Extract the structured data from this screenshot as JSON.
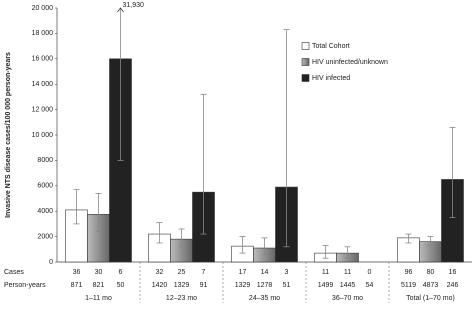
{
  "chart_data": {
    "type": "bar",
    "y_label": "Invasive NTS disease cases/100 000 person-years",
    "categories": [
      "1–11 mo",
      "12–23 mo",
      "24–35 mo",
      "36–70 mo",
      "Total (1–70 mo)"
    ],
    "series": [
      {
        "name": "Total Cohort",
        "color": "#ffffff",
        "values": [
          4100,
          2200,
          1250,
          700,
          1900
        ],
        "ci": [
          [
            3000,
            5700
          ],
          [
            1500,
            3100
          ],
          [
            700,
            2000
          ],
          [
            300,
            1300
          ],
          [
            1500,
            2200
          ]
        ],
        "cases": [
          36,
          32,
          17,
          11,
          96
        ],
        "person_years": [
          871,
          1420,
          1329,
          1499,
          5119
        ]
      },
      {
        "name": "HIV uninfected/unknown",
        "color": "#8a8a8a",
        "values": [
          3750,
          1800,
          1100,
          700,
          1600
        ],
        "ci": [
          [
            2400,
            5400
          ],
          [
            1200,
            2600
          ],
          [
            600,
            1900
          ],
          [
            300,
            1200
          ],
          [
            1300,
            2000
          ]
        ],
        "cases": [
          30,
          25,
          14,
          11,
          80
        ],
        "person_years": [
          821,
          1329,
          1278,
          1445,
          4873
        ]
      },
      {
        "name": "HIV infected",
        "color": "#222222",
        "values": [
          16000,
          5500,
          5900,
          0,
          6500
        ],
        "ci": [
          [
            8000,
            31930
          ],
          [
            2200,
            13200
          ],
          [
            1200,
            18300
          ],
          null,
          [
            3500,
            10600
          ]
        ],
        "cases": [
          6,
          7,
          3,
          0,
          16
        ],
        "person_years": [
          50,
          91,
          51,
          54,
          246
        ]
      }
    ],
    "annotation": {
      "value": 31930,
      "label": "31,930"
    },
    "row_labels": [
      "Cases",
      "Person-years"
    ],
    "ylim": [
      0,
      20000
    ],
    "yticks": [
      0,
      2000,
      4000,
      6000,
      8000,
      {
        "value": 10000,
        "label": "10 000"
      },
      {
        "value": 12000,
        "label": "12 000"
      },
      {
        "value": 14000,
        "label": "14 000"
      },
      {
        "value": 16000,
        "label": "16 000"
      },
      {
        "value": 18000,
        "label": "18 000"
      },
      {
        "value": 20000,
        "label": "20 000"
      }
    ],
    "legend": "top-right"
  }
}
